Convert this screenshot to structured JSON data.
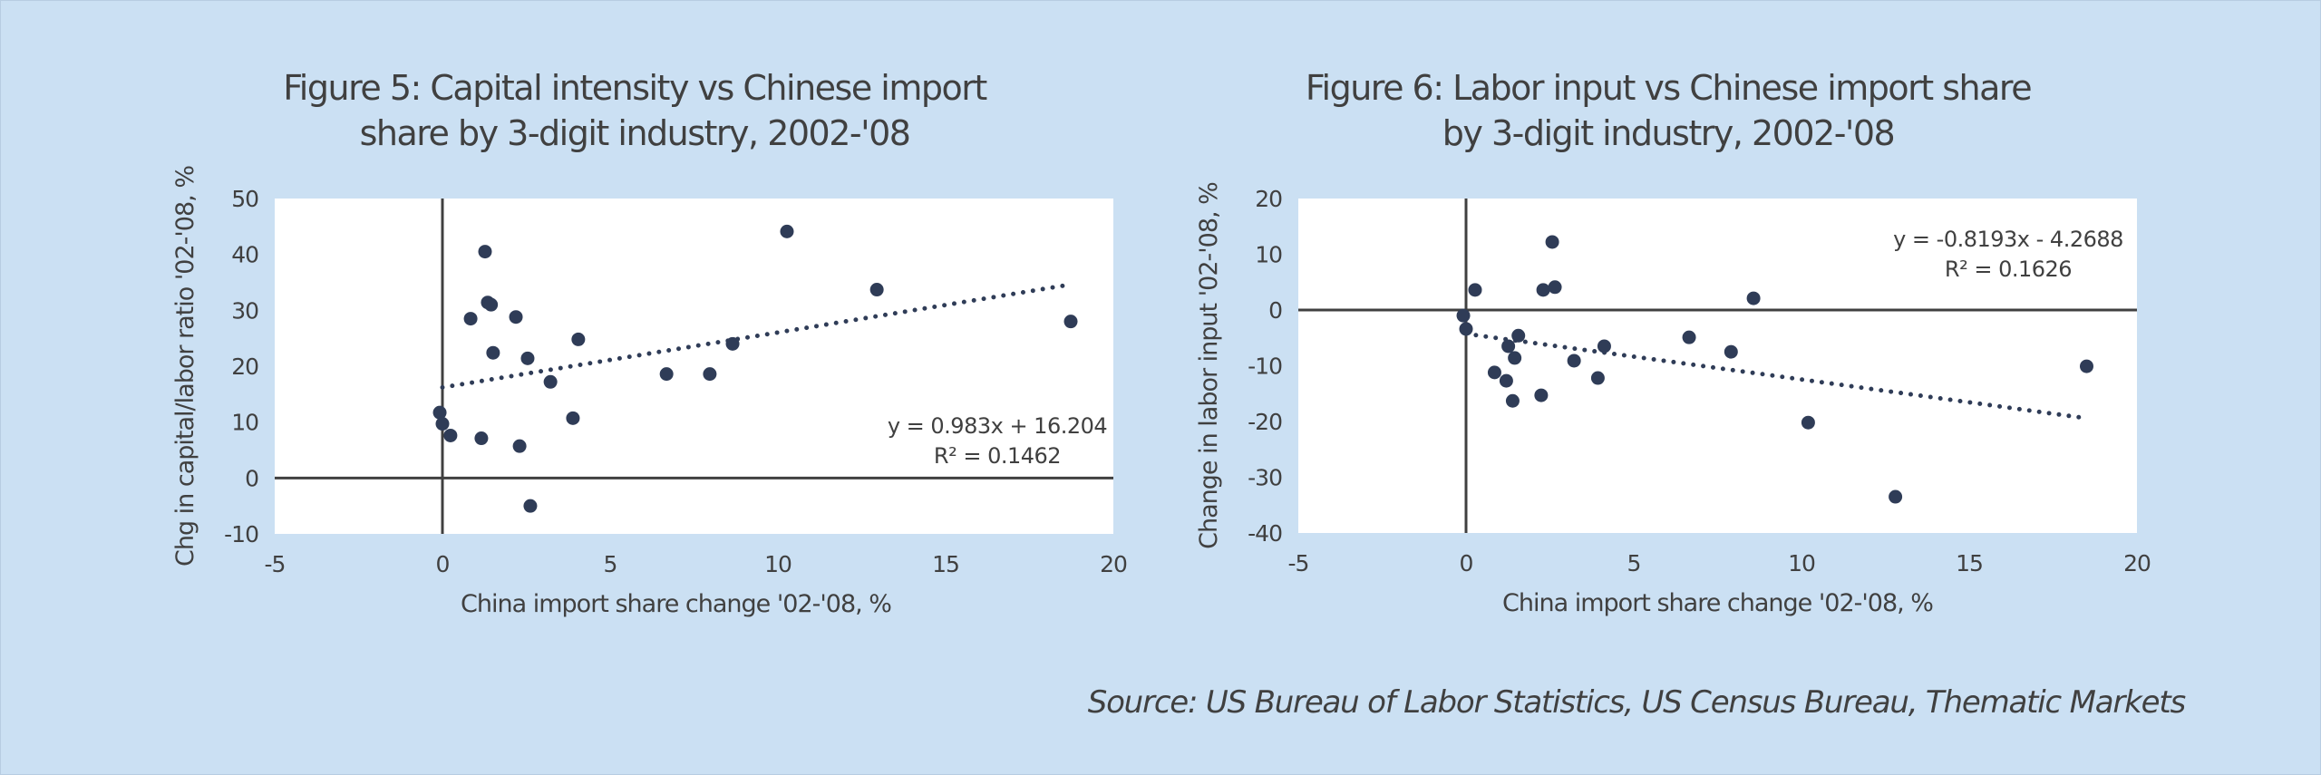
{
  "colors": {
    "background": "#cbe0f3",
    "plot_background": "#ffffff",
    "marker": "#2f3c57",
    "axis": "#404040",
    "text": "#404040"
  },
  "source": "Source: US Bureau of Labor Statistics, US Census Bureau, Thematic Markets",
  "chart_data": [
    {
      "type": "scatter",
      "title_lines": [
        "Figure 5: Capital intensity vs Chinese import",
        "share by 3-digit industry, 2002-'08"
      ],
      "xlabel": "China import share change '02-'08, %",
      "ylabel": "Chg in capital/labor ratio '02-'08, %",
      "xlim": [
        -5,
        20
      ],
      "ylim": [
        -10,
        50
      ],
      "xticks": [
        -5,
        0,
        5,
        10,
        15,
        20
      ],
      "yticks": [
        -10,
        0,
        10,
        20,
        30,
        40,
        50
      ],
      "grid": false,
      "legend": "none",
      "trendline": {
        "slope": 0.983,
        "intercept": 16.204,
        "x_range": [
          0,
          18.6
        ],
        "style": "dotted"
      },
      "equation_label": "y = 0.983x + 16.204",
      "r2_label": "R² = 0.1462",
      "points": [
        {
          "x": 1.27,
          "y": 40.5
        },
        {
          "x": 1.35,
          "y": 31.4
        },
        {
          "x": 1.45,
          "y": 31.0
        },
        {
          "x": 0.84,
          "y": 28.5
        },
        {
          "x": 2.19,
          "y": 28.8
        },
        {
          "x": 1.51,
          "y": 22.4
        },
        {
          "x": 2.54,
          "y": 21.4
        },
        {
          "x": 3.22,
          "y": 17.2
        },
        {
          "x": 4.05,
          "y": 24.8
        },
        {
          "x": -0.08,
          "y": 11.7
        },
        {
          "x": 0.0,
          "y": 9.7
        },
        {
          "x": 0.24,
          "y": 7.6
        },
        {
          "x": 1.16,
          "y": 7.1
        },
        {
          "x": 2.3,
          "y": 5.7
        },
        {
          "x": 3.89,
          "y": 10.7
        },
        {
          "x": 2.62,
          "y": -5.0
        },
        {
          "x": 6.68,
          "y": 18.6
        },
        {
          "x": 7.97,
          "y": 18.6
        },
        {
          "x": 8.65,
          "y": 24.0
        },
        {
          "x": 10.27,
          "y": 44.1
        },
        {
          "x": 12.95,
          "y": 33.7
        },
        {
          "x": 18.73,
          "y": 28.0
        }
      ]
    },
    {
      "type": "scatter",
      "title_lines": [
        "Figure 6: Labor input vs Chinese import share",
        "by 3-digit industry, 2002-'08"
      ],
      "xlabel": "China import share change '02-'08, %",
      "ylabel": "Change in labor input '02-'08, %",
      "xlim": [
        -5,
        20
      ],
      "ylim": [
        -40,
        20
      ],
      "xticks": [
        -5,
        0,
        5,
        10,
        15,
        20
      ],
      "yticks": [
        -40,
        -30,
        -20,
        -10,
        0,
        10,
        20
      ],
      "grid": false,
      "legend": "none",
      "trendline": {
        "slope": -0.8193,
        "intercept": -4.2688,
        "x_range": [
          0,
          18.5
        ],
        "style": "dotted"
      },
      "equation_label": "y = -0.8193x - 4.2688",
      "r2_label": "R² = 0.1626",
      "points": [
        {
          "x": 0.27,
          "y": 3.6
        },
        {
          "x": 2.57,
          "y": 12.2
        },
        {
          "x": 2.3,
          "y": 3.6
        },
        {
          "x": 2.65,
          "y": 4.1
        },
        {
          "x": -0.08,
          "y": -1.0
        },
        {
          "x": 0.0,
          "y": -3.4
        },
        {
          "x": 1.56,
          "y": -4.6
        },
        {
          "x": 1.26,
          "y": -6.5
        },
        {
          "x": 1.45,
          "y": -8.6
        },
        {
          "x": 0.85,
          "y": -11.2
        },
        {
          "x": 1.2,
          "y": -12.7
        },
        {
          "x": 1.39,
          "y": -16.3
        },
        {
          "x": 2.24,
          "y": -15.3
        },
        {
          "x": 3.22,
          "y": -9.1
        },
        {
          "x": 3.93,
          "y": -12.2
        },
        {
          "x": 4.12,
          "y": -6.5
        },
        {
          "x": 6.65,
          "y": -4.9
        },
        {
          "x": 7.9,
          "y": -7.5
        },
        {
          "x": 8.57,
          "y": 2.1
        },
        {
          "x": 10.2,
          "y": -20.2
        },
        {
          "x": 12.8,
          "y": -33.5
        },
        {
          "x": 18.5,
          "y": -10.1
        }
      ]
    }
  ]
}
